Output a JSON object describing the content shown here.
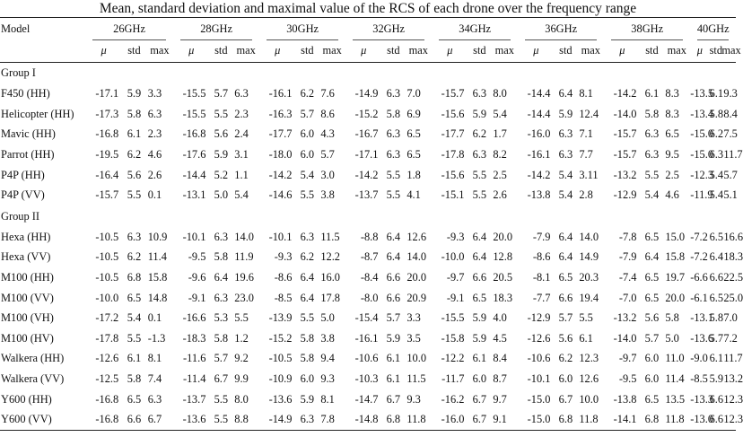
{
  "caption": "Mean, standard deviation and maximal value of the RCS of each drone over the frequency range",
  "header": {
    "model_label": "Model",
    "frequencies": [
      "26GHz",
      "28GHz",
      "30GHz",
      "32GHz",
      "34GHz",
      "36GHz",
      "38GHz",
      "40GHz"
    ],
    "sub_labels": [
      "μ",
      "std",
      "max"
    ]
  },
  "groups": [
    {
      "title": "Group I",
      "rows": [
        {
          "model": "F450 (HH)",
          "values": [
            "-17.1",
            "5.9",
            "3.3",
            "-15.5",
            "5.7",
            "6.3",
            "-16.1",
            "6.2",
            "7.6",
            "-14.9",
            "6.3",
            "7.0",
            "-15.7",
            "6.3",
            "8.0",
            "-14.4",
            "6.4",
            "8.1",
            "-14.2",
            "6.1",
            "8.3",
            "-13.5",
            "6.1",
            "9.3"
          ]
        },
        {
          "model": "Helicopter (HH)",
          "values": [
            "-17.3",
            "5.8",
            "6.3",
            "-15.5",
            "5.5",
            "2.3",
            "-16.3",
            "5.7",
            "8.6",
            "-15.2",
            "5.8",
            "6.9",
            "-15.6",
            "5.9",
            "5.4",
            "-14.4",
            "5.9",
            "12.4",
            "-14.0",
            "5.8",
            "8.3",
            "-13.4",
            "5.8",
            "8.4"
          ]
        },
        {
          "model": "Mavic (HH)",
          "values": [
            "-16.8",
            "6.1",
            "2.3",
            "-16.8",
            "5.6",
            "2.4",
            "-17.7",
            "6.0",
            "4.3",
            "-16.7",
            "6.3",
            "6.5",
            "-17.7",
            "6.2",
            "1.7",
            "-16.0",
            "6.3",
            "7.1",
            "-15.7",
            "6.3",
            "6.5",
            "-15.0",
            "6.2",
            "7.5"
          ]
        },
        {
          "model": "Parrot (HH)",
          "values": [
            "-19.5",
            "6.2",
            "4.6",
            "-17.6",
            "5.9",
            "3.1",
            "-18.0",
            "6.0",
            "5.7",
            "-17.1",
            "6.3",
            "6.5",
            "-17.8",
            "6.3",
            "8.2",
            "-16.1",
            "6.3",
            "7.7",
            "-15.7",
            "6.3",
            "9.5",
            "-15.0",
            "6.3",
            "11.7"
          ]
        },
        {
          "model": "P4P (HH)",
          "values": [
            "-16.4",
            "5.6",
            "2.6",
            "-14.4",
            "5.2",
            "1.1",
            "-14.2",
            "5.4",
            "3.0",
            "-14.2",
            "5.5",
            "1.8",
            "-15.6",
            "5.5",
            "2.5",
            "-14.2",
            "5.4",
            "3.11",
            "-13.2",
            "5.5",
            "2.5",
            "-12.3",
            "5.4",
            "5.7"
          ]
        },
        {
          "model": "P4P (VV)",
          "values": [
            "-15.7",
            "5.5",
            "0.1",
            "-13.1",
            "5.0",
            "5.4",
            "-14.6",
            "5.5",
            "3.8",
            "-13.7",
            "5.5",
            "4.1",
            "-15.1",
            "5.5",
            "2.6",
            "-13.8",
            "5.4",
            "2.8",
            "-12.9",
            "5.4",
            "4.6",
            "-11.9",
            "5.4",
            "5.1"
          ]
        }
      ]
    },
    {
      "title": "Group II",
      "rows": [
        {
          "model": "Hexa (HH)",
          "values": [
            "-10.5",
            "6.3",
            "10.9",
            "-10.1",
            "6.3",
            "14.0",
            "-10.1",
            "6.3",
            "11.5",
            "-8.8",
            "6.4",
            "12.6",
            "-9.3",
            "6.4",
            "20.0",
            "-7.9",
            "6.4",
            "14.0",
            "-7.8",
            "6.5",
            "15.0",
            "-7.2",
            "6.5",
            "16.6"
          ]
        },
        {
          "model": "Hexa (VV)",
          "values": [
            "-10.5",
            "6.2",
            "11.4",
            "-9.5",
            "5.8",
            "11.9",
            "-9.3",
            "6.2",
            "12.2",
            "-8.7",
            "6.4",
            "14.0",
            "-10.0",
            "6.4",
            "12.8",
            "-8.6",
            "6.4",
            "14.9",
            "-7.9",
            "6.4",
            "15.8",
            "-7.2",
            "6.4",
            "18.3"
          ]
        },
        {
          "model": "M100 (HH)",
          "values": [
            "-10.5",
            "6.8",
            "15.8",
            "-9.6",
            "6.4",
            "19.6",
            "-8.6",
            "6.4",
            "16.0",
            "-8.4",
            "6.6",
            "20.0",
            "-9.7",
            "6.6",
            "20.5",
            "-8.1",
            "6.5",
            "20.3",
            "-7.4",
            "6.5",
            "19.7",
            "-6.6",
            "6.6",
            "22.5"
          ]
        },
        {
          "model": "M100 (VV)",
          "values": [
            "-10.0",
            "6.5",
            "14.8",
            "-9.1",
            "6.3",
            "23.0",
            "-8.5",
            "6.4",
            "17.8",
            "-8.0",
            "6.6",
            "20.9",
            "-9.1",
            "6.5",
            "18.3",
            "-7.7",
            "6.6",
            "19.4",
            "-7.0",
            "6.5",
            "20.0",
            "-6.1",
            "6.5",
            "25.0"
          ]
        },
        {
          "model": "M100 (VH)",
          "values": [
            "-17.2",
            "5.4",
            "0.1",
            "-16.6",
            "5.3",
            "5.5",
            "-13.9",
            "5.5",
            "5.0",
            "-15.4",
            "5.7",
            "3.3",
            "-15.5",
            "5.9",
            "4.0",
            "-12.9",
            "5.7",
            "5.5",
            "-13.2",
            "5.6",
            "5.8",
            "-13.1",
            "5.8",
            "7.0"
          ]
        },
        {
          "model": "M100 (HV)",
          "values": [
            "-17.8",
            "5.5",
            "-1.3",
            "-18.3",
            "5.8",
            "1.2",
            "-15.2",
            "5.8",
            "3.8",
            "-16.1",
            "5.9",
            "3.5",
            "-15.8",
            "5.9",
            "4.5",
            "-12.6",
            "5.6",
            "6.1",
            "-14.0",
            "5.7",
            "5.0",
            "-13.6",
            "5.7",
            "7.2"
          ]
        },
        {
          "model": "Walkera (HH)",
          "values": [
            "-12.6",
            "6.1",
            "8.1",
            "-11.6",
            "5.7",
            "9.2",
            "-10.5",
            "5.8",
            "9.4",
            "-10.6",
            "6.1",
            "10.0",
            "-12.2",
            "6.1",
            "8.4",
            "-10.6",
            "6.2",
            "12.3",
            "-9.7",
            "6.0",
            "11.0",
            "-9.0",
            "6.1",
            "11.7"
          ]
        },
        {
          "model": "Walkera (VV)",
          "values": [
            "-12.5",
            "5.8",
            "7.4",
            "-11.4",
            "6.7",
            "9.9",
            "-10.9",
            "6.0",
            "9.3",
            "-10.3",
            "6.1",
            "11.5",
            "-11.7",
            "6.0",
            "8.7",
            "-10.1",
            "6.0",
            "12.6",
            "-9.5",
            "6.0",
            "11.4",
            "-8.5",
            "5.9",
            "13.2"
          ]
        },
        {
          "model": "Y600 (HH)",
          "values": [
            "-16.8",
            "6.5",
            "6.3",
            "-13.7",
            "5.5",
            "8.0",
            "-13.6",
            "5.9",
            "8.1",
            "-14.7",
            "6.7",
            "9.3",
            "-16.2",
            "6.7",
            "9.7",
            "-15.0",
            "6.7",
            "10.0",
            "-13.8",
            "6.5",
            "13.5",
            "-13.3",
            "6.6",
            "12.3"
          ]
        },
        {
          "model": "Y600 (VV)",
          "values": [
            "-16.8",
            "6.6",
            "6.7",
            "-13.6",
            "5.5",
            "8.8",
            "-14.9",
            "6.3",
            "7.8",
            "-14.8",
            "6.8",
            "11.8",
            "-16.0",
            "6.7",
            "9.1",
            "-15.0",
            "6.8",
            "11.8",
            "-14.1",
            "6.8",
            "11.8",
            "-13.0",
            "6.6",
            "12.3"
          ]
        }
      ]
    }
  ]
}
